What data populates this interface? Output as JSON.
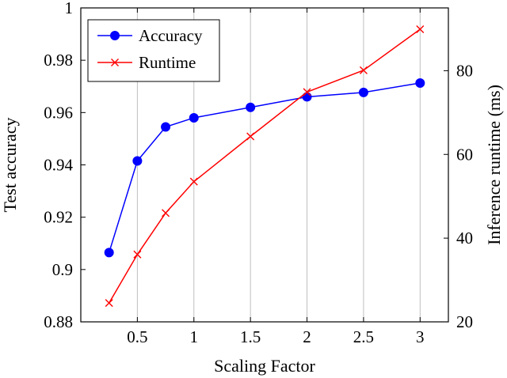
{
  "chart_data": {
    "type": "line",
    "xlabel": "Scaling Factor",
    "ylabel": "Test accuracy",
    "y2label": "Inference runtime (ms)",
    "xlim": [
      0.0,
      3.25
    ],
    "ylim": [
      0.88,
      1.0
    ],
    "y2lim": [
      20,
      95
    ],
    "x_ticks": [
      0.5,
      1,
      1.5,
      2,
      2.5,
      3
    ],
    "x_tick_labels": [
      "0.5",
      "1",
      "1.5",
      "2",
      "2.5",
      "3"
    ],
    "y_ticks": [
      0.88,
      0.9,
      0.92,
      0.94,
      0.96,
      0.98,
      1.0
    ],
    "y_tick_labels": [
      "0.88",
      "0.9",
      "0.92",
      "0.94",
      "0.96",
      "0.98",
      "1"
    ],
    "y2_ticks": [
      20,
      40,
      60,
      80
    ],
    "y2_tick_labels": [
      "20",
      "40",
      "60",
      "80"
    ],
    "grid": "vertical",
    "legend_position": "top-left",
    "series": [
      {
        "name": "Accuracy",
        "axis": "left",
        "color": "#0000ff",
        "marker": "circle",
        "x": [
          0.25,
          0.5,
          0.75,
          1.0,
          1.5,
          2.0,
          2.5,
          3.0
        ],
        "values": [
          0.9065,
          0.9415,
          0.9545,
          0.958,
          0.962,
          0.966,
          0.9677,
          0.9713
        ]
      },
      {
        "name": "Runtime",
        "axis": "right",
        "color": "#ff0000",
        "marker": "cross",
        "x": [
          0.25,
          0.5,
          0.75,
          1.0,
          1.5,
          2.0,
          2.5,
          3.0
        ],
        "values": [
          24.5,
          36.1,
          46.0,
          53.5,
          64.3,
          74.9,
          80.1,
          89.9
        ]
      }
    ]
  }
}
